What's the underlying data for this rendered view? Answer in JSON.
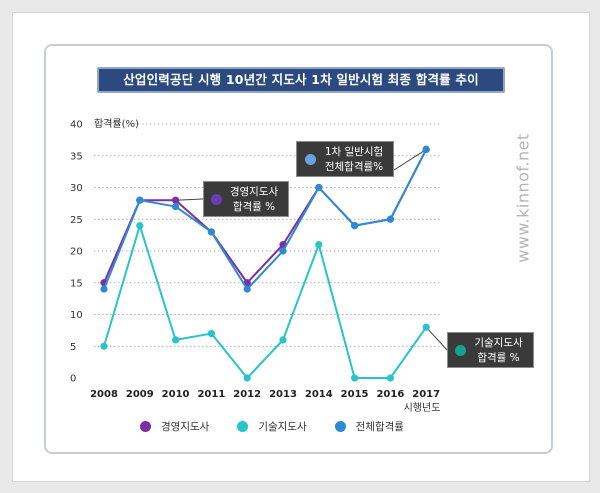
{
  "chart_data": {
    "type": "line",
    "title": "산업인력공단 시행 10년간 지도사 1차 일반시험 최종 합격률 추이",
    "ylabel": "합격률(%)",
    "xlabel": "시행년도",
    "categories": [
      "2008",
      "2009",
      "2010",
      "2011",
      "2012",
      "2013",
      "2014",
      "2015",
      "2016",
      "2017"
    ],
    "yticks": [
      0,
      5,
      10,
      15,
      20,
      25,
      30,
      35,
      40
    ],
    "ylim": [
      0,
      40
    ],
    "grid": "horizontal dotted",
    "legend_position": "bottom",
    "series": [
      {
        "name": "경영지도사",
        "color": "#7b2fa3",
        "values": [
          15,
          28,
          28,
          23,
          15,
          21,
          30,
          24,
          25,
          36
        ]
      },
      {
        "name": "기술지도사",
        "color": "#27c4c9",
        "values": [
          5,
          24,
          6,
          7,
          0,
          6,
          21,
          0,
          0,
          8
        ]
      },
      {
        "name": "전체합격률",
        "color": "#2e8ad6",
        "values": [
          14,
          28,
          27,
          23,
          14,
          20,
          30,
          24,
          25,
          36
        ]
      }
    ],
    "annotations": [
      {
        "series": "전체합격률",
        "line1": "1차 일반시험",
        "line2": "전체합격률%",
        "dot_color": "#6aa2e0"
      },
      {
        "series": "경영지도사",
        "line1": "경영지도사",
        "line2": "합격률 %",
        "dot_color": "#6a3db5"
      },
      {
        "series": "기술지도사",
        "line1": "기술지도사",
        "line2": "합격률 %",
        "dot_color": "#14a38e"
      }
    ]
  },
  "watermark": "www.kinnof.net"
}
